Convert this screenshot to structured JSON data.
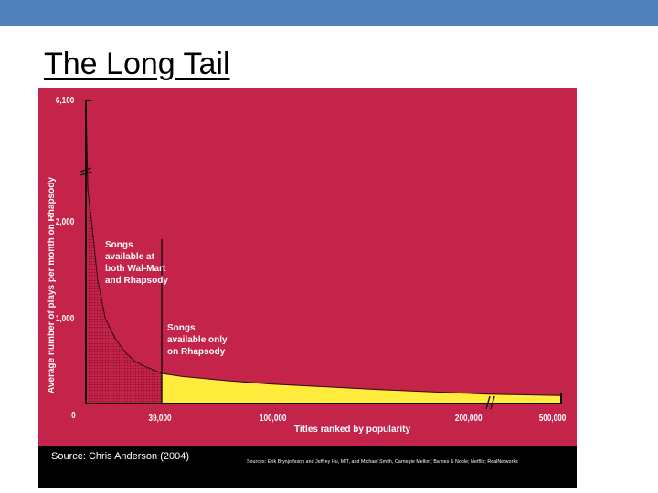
{
  "slide": {
    "title": "The Long Tail",
    "colors": {
      "top_bar": "#4f81bd",
      "chart_background": "#c4234a",
      "tail_fill": "#ffeb3b",
      "head_fill": "#c4234a"
    }
  },
  "chart_data": {
    "type": "area",
    "ylabel": "Average number of plays per month on Rhapsody",
    "xlabel": "Titles ranked by popularity",
    "x_ticks": [
      "39,000",
      "100,000",
      "200,000",
      "500,000"
    ],
    "y_ticks": [
      "0",
      "1,000",
      "2,000",
      "6,100"
    ],
    "annotations": [
      [
        "Songs",
        "available at",
        "both Wal-Mart",
        "and Rhapsody"
      ],
      [
        "Songs",
        "available only",
        "on Rhapsody"
      ]
    ],
    "axis_breaks": {
      "y": "between 2,000 and 6,100",
      "x": "between 200,000 and 500,000"
    },
    "series": [
      {
        "x": [
          0,
          1000,
          3000,
          6000,
          10000,
          15000,
          20000,
          25000,
          30000,
          35000,
          39000,
          50000,
          75000,
          100000,
          150000,
          200000,
          500000
        ],
        "y": [
          6100,
          2400,
          1980,
          1400,
          1000,
          770,
          610,
          500,
          440,
          395,
          355,
          320,
          270,
          230,
          165,
          110,
          95
        ]
      }
    ],
    "split_at": "39,000",
    "source": "Source: Chris Anderson (2004)",
    "credits": "Sources: Erik Brynjolfsson and Jeffrey Hu, MIT, and Michael Smith, Carnegie Mellon; Barnes & Noble; Netflix; RealNetworks"
  }
}
